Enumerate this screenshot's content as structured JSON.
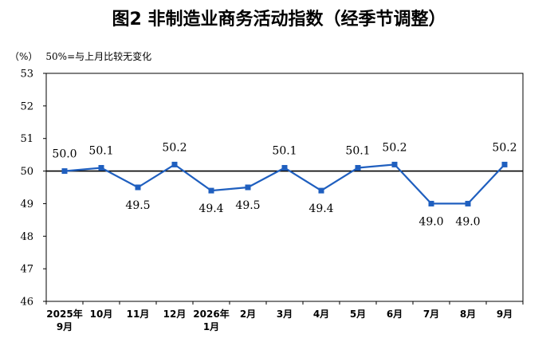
{
  "title": "图2  非制造业商务活动指数（经季节调整）",
  "unit": "（%）",
  "reference_note": "50%=与上月比较无变化",
  "colors": {
    "series": "#1f5fbf",
    "axis": "#000000"
  },
  "chart_data": {
    "type": "line",
    "categories": [
      [
        "2025年",
        "9月"
      ],
      [
        "10月"
      ],
      [
        "11月"
      ],
      [
        "12月"
      ],
      [
        "2026年",
        "1月"
      ],
      [
        "2月"
      ],
      [
        "3月"
      ],
      [
        "4月"
      ],
      [
        "5月"
      ],
      [
        "6月"
      ],
      [
        "7月"
      ],
      [
        "8月"
      ],
      [
        "9月"
      ]
    ],
    "values": [
      50.0,
      50.1,
      49.5,
      50.2,
      49.4,
      49.5,
      50.1,
      49.4,
      50.1,
      50.2,
      49.0,
      49.0,
      50.2
    ],
    "data_labels": [
      "50.0",
      "50.1",
      "49.5",
      "50.2",
      "49.4",
      "49.5",
      "50.1",
      "49.4",
      "50.1",
      "50.2",
      "49.0",
      "49.0",
      "50.2"
    ],
    "label_position": [
      "above",
      "above",
      "below",
      "above",
      "below",
      "below",
      "above",
      "below",
      "above",
      "above",
      "below",
      "below",
      "above"
    ],
    "ylim": [
      46,
      53
    ],
    "yticks": [
      46,
      47,
      48,
      49,
      50,
      51,
      52,
      53
    ],
    "reference_line": 50,
    "grid": false,
    "marker": "square"
  }
}
